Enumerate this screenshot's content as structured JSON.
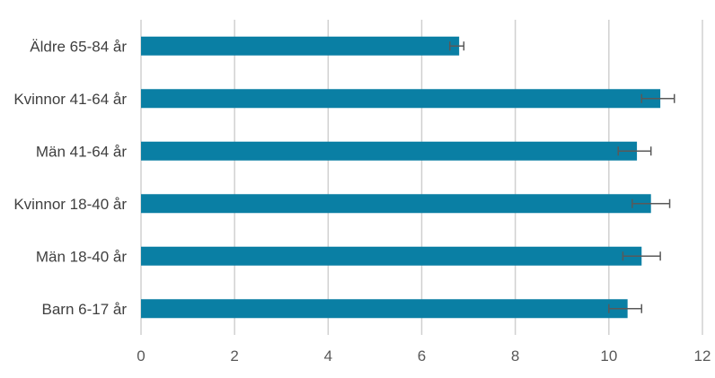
{
  "chart_data": {
    "type": "bar",
    "orientation": "horizontal",
    "categories": [
      "Äldre 65-84 år",
      "Kvinnor 41-64 år",
      "Män 41-64 år",
      "Kvinnor 18-40 år",
      "Män 18-40 år",
      "Barn 6-17 år"
    ],
    "values": [
      6.8,
      11.1,
      10.6,
      10.9,
      10.7,
      10.4
    ],
    "error_low": [
      6.6,
      10.7,
      10.2,
      10.5,
      10.3,
      10.0
    ],
    "error_high": [
      6.9,
      11.4,
      10.9,
      11.3,
      11.1,
      10.7
    ],
    "xlim": [
      0,
      12
    ],
    "x_ticks": [
      0,
      2,
      4,
      6,
      8,
      10,
      12
    ],
    "x_tick_labels": [
      "0",
      "2",
      "4",
      "6",
      "8",
      "10",
      "12"
    ],
    "grid": "vertical",
    "title": "",
    "xlabel": "",
    "ylabel": "",
    "colors": {
      "bar": "#0a7fa4",
      "grid": "#d0d0d0",
      "error_bar": "#595959"
    }
  }
}
